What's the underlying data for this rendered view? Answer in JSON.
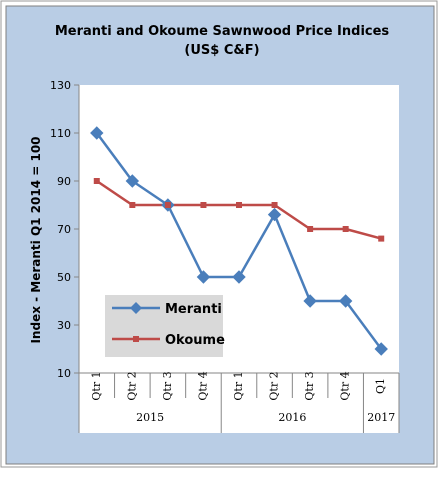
{
  "chart_data": {
    "type": "line",
    "title": "Meranti and Okoume Sawnwood Price Indices",
    "subtitle": "(US$ C&F)",
    "ylabel": "Index - Meranti  Q1 2014 = 100",
    "xlabel": "",
    "ylim": [
      10,
      130
    ],
    "yticks": [
      10,
      30,
      50,
      70,
      90,
      110,
      130
    ],
    "grid": false,
    "legend_placement": "lower-left",
    "categories": [
      "Qtr 1",
      "Qtr 2",
      "Qtr 3",
      "Qtr 4",
      "Qtr 1",
      "Qtr 2",
      "Qtr 3",
      "Qtr 4",
      "Q1"
    ],
    "year_groups": [
      {
        "label": "2015",
        "start": 0,
        "end": 3
      },
      {
        "label": "2016",
        "start": 4,
        "end": 7
      },
      {
        "label": "2017",
        "start": 8,
        "end": 8
      }
    ],
    "series": [
      {
        "name": "Meranti",
        "color": "#4A7EBB",
        "marker": "diamond",
        "values": [
          110,
          90,
          80,
          50,
          50,
          76,
          40,
          40,
          20
        ]
      },
      {
        "name": "Okoume",
        "color": "#BE4B48",
        "marker": "square",
        "values": [
          90,
          80,
          80,
          80,
          80,
          80,
          70,
          70,
          66
        ]
      }
    ]
  },
  "colors": {
    "outer_background": "#B9CDE5",
    "plot_background": "#FFFFFF",
    "legend_background": "#D9D9D9"
  }
}
